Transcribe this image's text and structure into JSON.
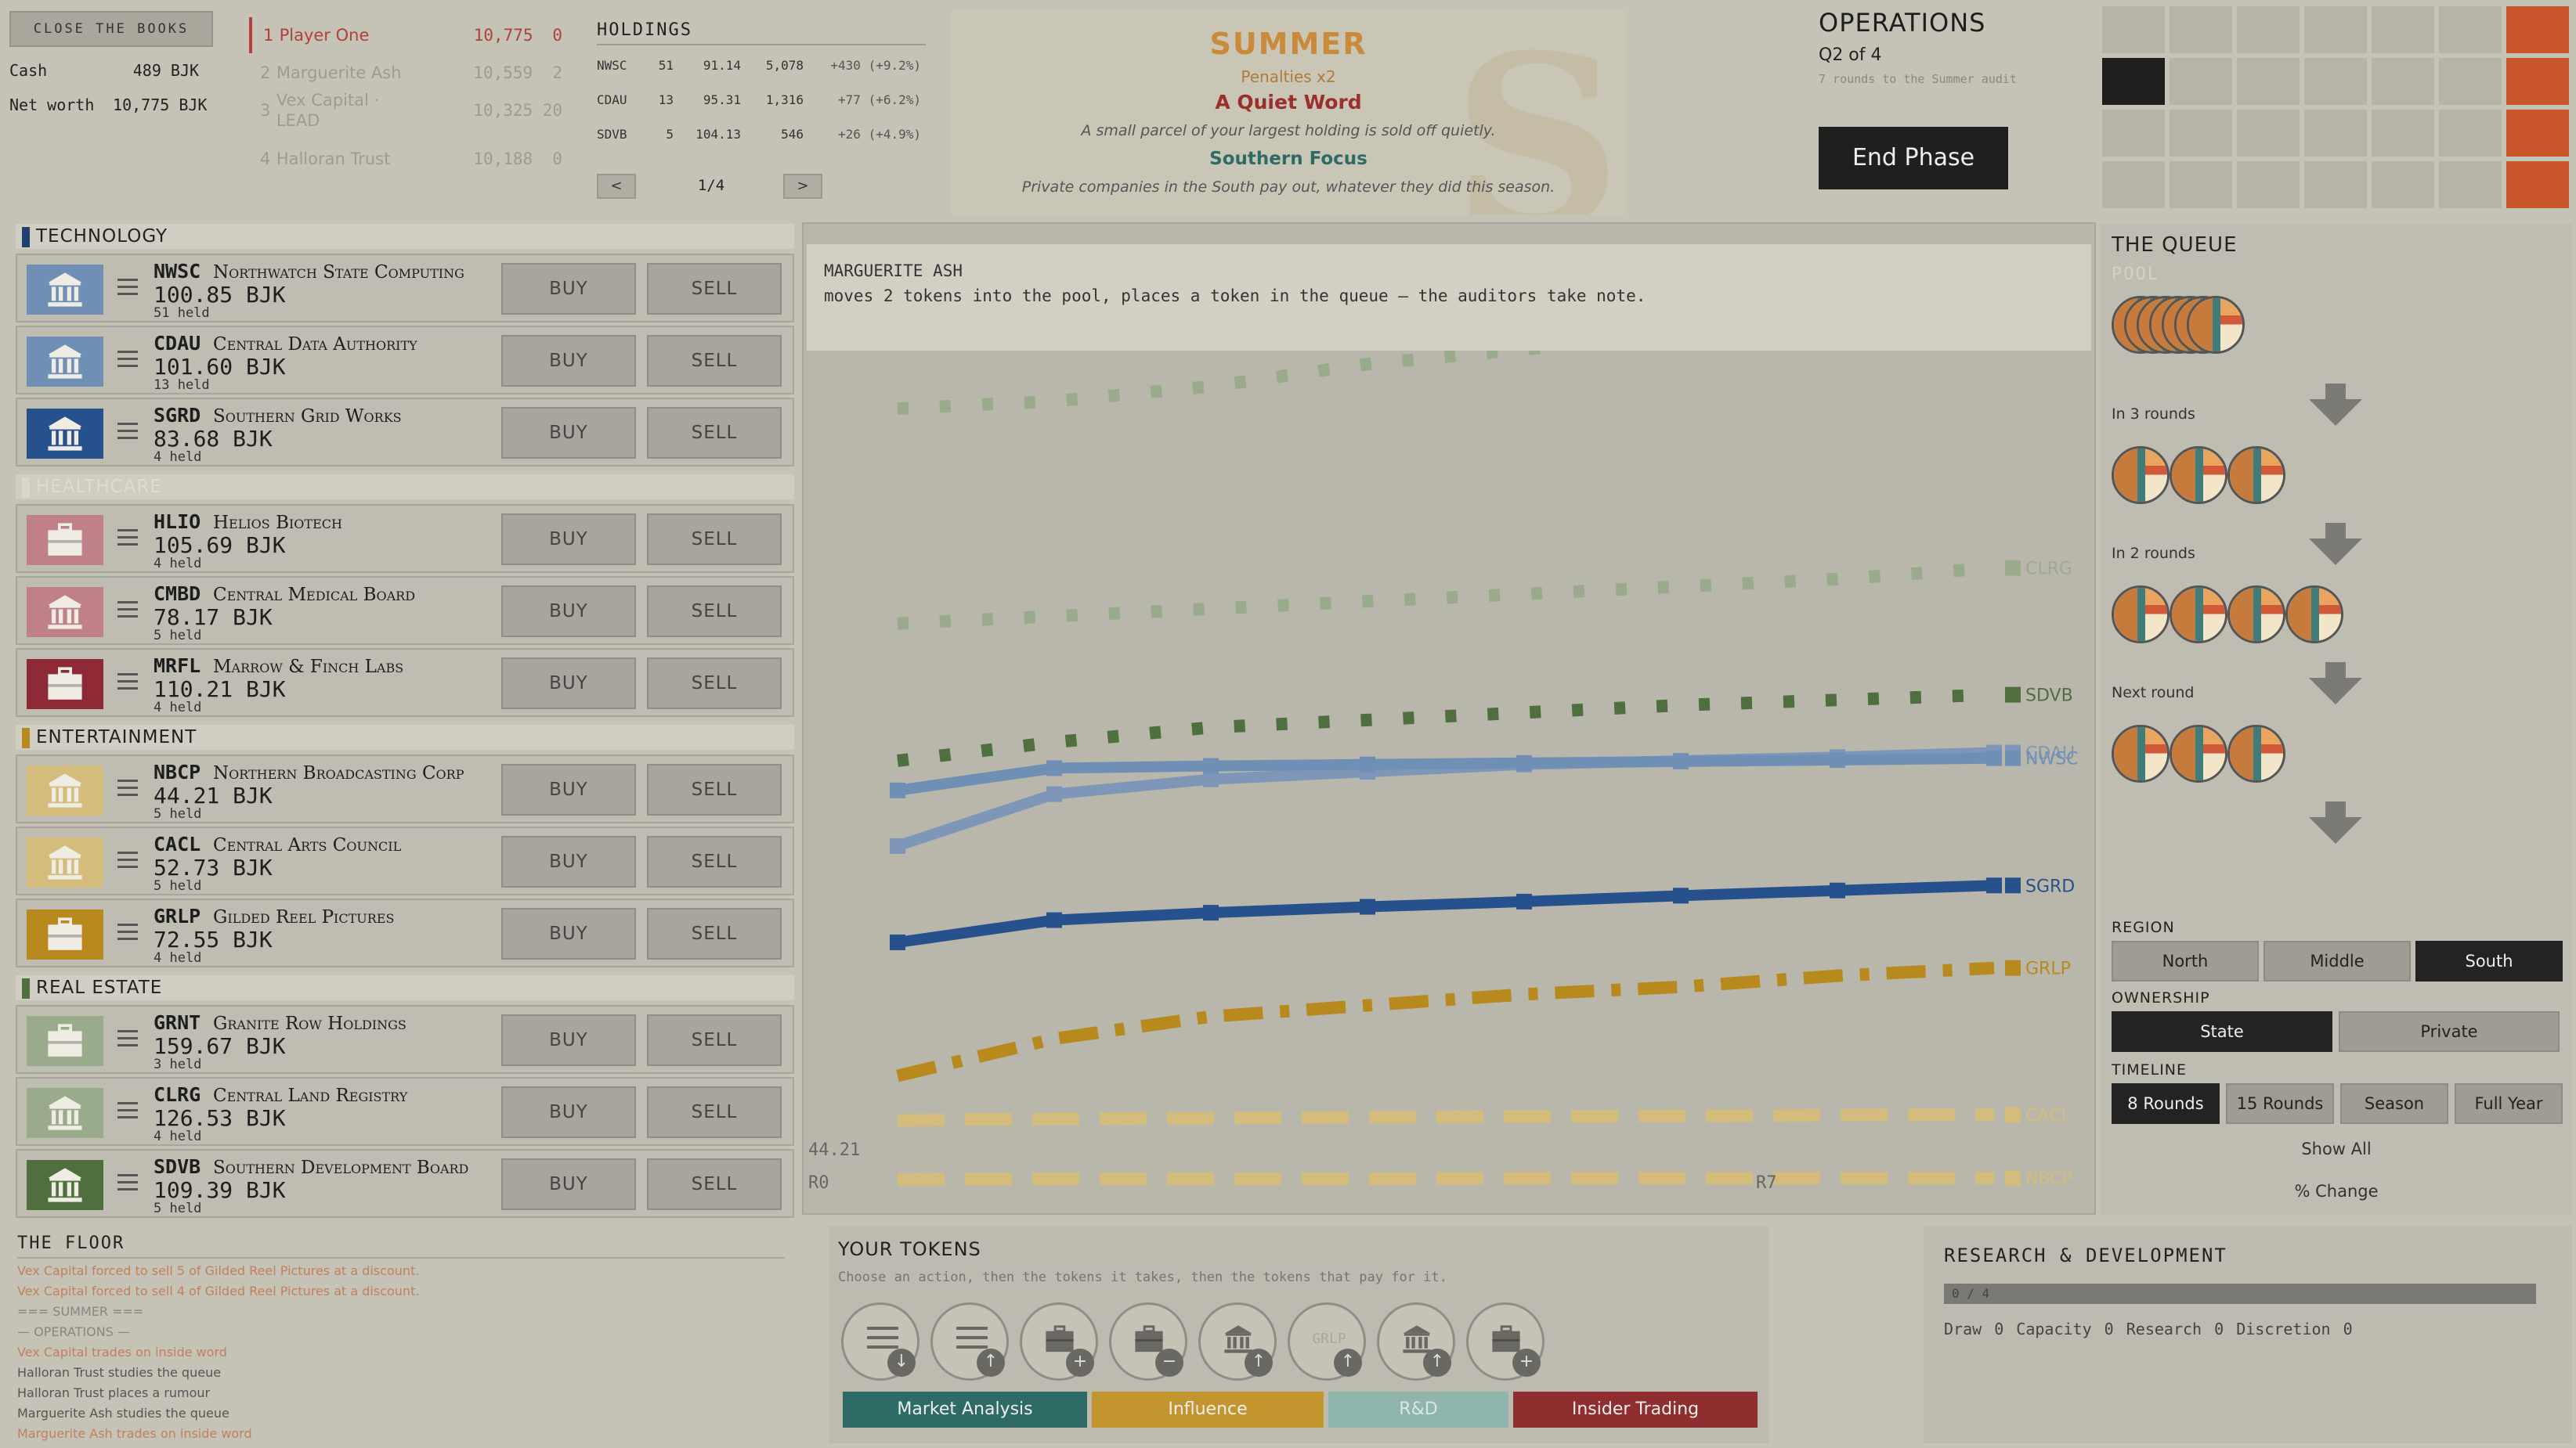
{
  "top_left": {
    "close_books_label": "CLOSE THE BOOKS",
    "cash_label": "Cash",
    "cash_value": "489 BJK",
    "networth_label": "Net worth",
    "networth_value": "10,775 BJK"
  },
  "rankings": [
    {
      "rank": "1",
      "name": "Player One",
      "networth": "10,775",
      "score": "0"
    },
    {
      "rank": "2",
      "name": "Marguerite Ash",
      "networth": "10,559",
      "score": "2"
    },
    {
      "rank": "3",
      "name": "Vex Capital · LEAD",
      "networth": "10,325",
      "score": "20"
    },
    {
      "rank": "4",
      "name": "Halloran Trust",
      "networth": "10,188",
      "score": "0"
    }
  ],
  "holdings": {
    "title": "HOLDINGS",
    "rows": [
      {
        "ticker": "NWSC",
        "shares": "51",
        "price": "91.14",
        "value": "5,078",
        "change": "+430 (+9.2%)"
      },
      {
        "ticker": "CDAU",
        "shares": "13",
        "price": "95.31",
        "value": "1,316",
        "change": "+77 (+6.2%)"
      },
      {
        "ticker": "SDVB",
        "shares": "5",
        "price": "104.13",
        "value": "546",
        "change": "+26 (+4.9%)"
      }
    ],
    "prev": "<",
    "next": ">",
    "page": "1/4"
  },
  "season": {
    "name": "SUMMER",
    "penalties": "Penalties x2",
    "event1_title": "A Quiet Word",
    "event1_desc": "A small parcel of your largest holding is sold off quietly.",
    "event2_title": "Southern Focus",
    "event2_desc": "Private companies in the South pay out, whatever they did this season.",
    "watermark": "S"
  },
  "operations": {
    "title": "OPERATIONS",
    "quarter": "Q2 of 4",
    "note": "7 rounds to the Summer audit",
    "end_phase": "End Phase"
  },
  "market": {
    "sectors": [
      {
        "name": "TECHNOLOGY",
        "color": "#1f3f6e",
        "faded": false,
        "stocks": [
          {
            "ticker": "NWSC",
            "name": "Northwatch State Computing",
            "price": "100.85 BJK",
            "held": "51 held",
            "icon": "institution-icon",
            "color": "#6f8fb5"
          },
          {
            "ticker": "CDAU",
            "name": "Central Data Authority",
            "price": "101.60 BJK",
            "held": "13 held",
            "icon": "institution-icon",
            "color": "#6f8fb5"
          },
          {
            "ticker": "SGRD",
            "name": "Southern Grid Works",
            "price": "83.68 BJK",
            "held": "4 held",
            "icon": "institution-icon",
            "color": "#27518c"
          }
        ]
      },
      {
        "name": "HEALTHCARE",
        "color": "#d9d6cb",
        "faded": true,
        "stocks": [
          {
            "ticker": "HLIO",
            "name": "Helios Biotech",
            "price": "105.69 BJK",
            "held": "4 held",
            "icon": "briefcase-icon",
            "color": "#c08088"
          },
          {
            "ticker": "CMBD",
            "name": "Central Medical Board",
            "price": "78.17 BJK",
            "held": "5 held",
            "icon": "institution-icon",
            "color": "#c08088"
          },
          {
            "ticker": "MRFL",
            "name": "Marrow & Finch Labs",
            "price": "110.21 BJK",
            "held": "4 held",
            "icon": "briefcase-icon",
            "color": "#8e2a35"
          }
        ]
      },
      {
        "name": "ENTERTAINMENT",
        "color": "#b88a1e",
        "faded": false,
        "stocks": [
          {
            "ticker": "NBCP",
            "name": "Northern Broadcasting Corp",
            "price": "44.21 BJK",
            "held": "5 held",
            "icon": "institution-icon",
            "color": "#d4bd7c"
          },
          {
            "ticker": "CACL",
            "name": "Central Arts Council",
            "price": "52.73 BJK",
            "held": "5 held",
            "icon": "institution-icon",
            "color": "#d4bd7c"
          },
          {
            "ticker": "GRLP",
            "name": "Gilded Reel Pictures",
            "price": "72.55 BJK",
            "held": "4 held",
            "icon": "briefcase-icon",
            "color": "#b88a1e"
          }
        ]
      },
      {
        "name": "REAL ESTATE",
        "color": "#4f6f3e",
        "faded": false,
        "stocks": [
          {
            "ticker": "GRNT",
            "name": "Granite Row Holdings",
            "price": "159.67 BJK",
            "held": "3 held",
            "icon": "briefcase-icon",
            "color": "#9aab8c"
          },
          {
            "ticker": "CLRG",
            "name": "Central Land Registry",
            "price": "126.53 BJK",
            "held": "4 held",
            "icon": "institution-icon",
            "color": "#9aab8c"
          },
          {
            "ticker": "SDVB",
            "name": "Southern Development Board",
            "price": "109.39 BJK",
            "held": "5 held",
            "icon": "institution-icon",
            "color": "#4f6f3e"
          }
        ]
      }
    ],
    "buy_label": "BUY",
    "sell_label": "SELL"
  },
  "event_log": {
    "actor": "MARGUERITE ASH",
    "text": "moves 2 tokens into the pool, places a token in the queue — the auditors take note."
  },
  "chart_data": {
    "type": "line",
    "x": [
      0,
      1,
      2,
      3,
      4,
      5,
      6,
      7
    ],
    "xlabel_left": "R0",
    "xlabel_right": "R7",
    "min_label": "44.21",
    "ylim": [
      40,
      165
    ],
    "series": [
      {
        "name": "",
        "color": "#9aab8c",
        "style": "dotted",
        "values": [
          148,
          149,
          151,
          154,
          156,
          158,
          160,
          162
        ]
      },
      {
        "name": "CLRG",
        "color": "#9aab8c",
        "style": "dotted",
        "values": [
          119,
          120,
          121,
          122,
          123,
          124,
          125,
          126.5
        ]
      },
      {
        "name": "SDVB",
        "color": "#4f6f3e",
        "style": "dotted",
        "values": [
          100.5,
          103,
          105,
          106,
          107,
          108,
          108.7,
          109.4
        ]
      },
      {
        "name": "CDAU",
        "color": "#7e97b8",
        "style": "solid",
        "values": [
          89,
          96,
          98,
          99,
          100,
          100.5,
          101,
          101.6
        ]
      },
      {
        "name": "NWSC",
        "color": "#6f8fb5",
        "style": "solid",
        "values": [
          96.5,
          99.5,
          99.8,
          100,
          100.2,
          100.4,
          100.6,
          100.85
        ]
      },
      {
        "name": "SGRD",
        "color": "#27518c",
        "style": "solid",
        "values": [
          76,
          79,
          80,
          80.8,
          81.5,
          82.3,
          83,
          83.68
        ]
      },
      {
        "name": "GRLP",
        "color": "#b88a1e",
        "style": "dashdot",
        "values": [
          58,
          63,
          66,
          67.5,
          69,
          70,
          71.5,
          72.55
        ]
      },
      {
        "name": "CACL",
        "color": "#d4bd7c",
        "style": "dashed",
        "values": [
          52,
          52.2,
          52.3,
          52.4,
          52.5,
          52.6,
          52.7,
          52.73
        ]
      },
      {
        "name": "NBCP",
        "color": "#d4bd7c",
        "style": "dashed",
        "values": [
          44,
          44.1,
          44.1,
          44.1,
          44.2,
          44.2,
          44.2,
          44.21
        ]
      }
    ]
  },
  "queue": {
    "title": "THE QUEUE",
    "pool_label": "POOL",
    "pool_count": 7,
    "stages": [
      {
        "label": "In 3 rounds",
        "count": 3
      },
      {
        "label": "In 2 rounds",
        "count": 4
      },
      {
        "label": "Next round",
        "count": 3
      }
    ]
  },
  "filters": {
    "region_label": "REGION",
    "region": [
      "North",
      "Middle",
      "South"
    ],
    "region_active": 2,
    "ownership_label": "OWNERSHIP",
    "ownership": [
      "State",
      "Private"
    ],
    "ownership_active": 0,
    "timeline_label": "TIMELINE",
    "timeline": [
      "8 Rounds",
      "15 Rounds",
      "Season",
      "Full Year"
    ],
    "timeline_active": 0,
    "show_all": "Show All",
    "pct_change": "% Change"
  },
  "floor": {
    "title": "THE FLOOR",
    "lines": [
      {
        "text": "Vex Capital forced to sell 5 of Gilded Reel Pictures at a discount.",
        "color": "#c4805c"
      },
      {
        "text": "Vex Capital forced to sell 4 of Gilded Reel Pictures at a discount.",
        "color": "#c4805c"
      },
      {
        "text": "=== SUMMER ===",
        "color": "#888680"
      },
      {
        "text": "— OPERATIONS —",
        "color": "#888680"
      },
      {
        "text": "Vex Capital trades on inside word",
        "color": "#c4805c"
      },
      {
        "text": "Halloran Trust studies the queue",
        "color": "#555"
      },
      {
        "text": "Halloran Trust places a rumour",
        "color": "#555"
      },
      {
        "text": "Marguerite Ash studies the queue",
        "color": "#555"
      },
      {
        "text": "Marguerite Ash trades on inside word",
        "color": "#c4805c"
      }
    ]
  },
  "tokens": {
    "title": "YOUR TOKENS",
    "hint": "Choose an action, then the tokens it takes, then the tokens that pay for it.",
    "actions": [
      {
        "name": "analysis-down-icon",
        "glyph": "menu",
        "badge": "↓"
      },
      {
        "name": "analysis-up-icon",
        "glyph": "menu",
        "badge": "↑"
      },
      {
        "name": "briefcase-plus-icon",
        "glyph": "briefcase",
        "badge": "+"
      },
      {
        "name": "briefcase-minus-icon",
        "glyph": "briefcase",
        "badge": "−"
      },
      {
        "name": "institution-up-icon",
        "glyph": "institution",
        "badge": "↑"
      },
      {
        "name": "grlp-up-icon",
        "glyph": "text",
        "text": "GRLP",
        "badge": "↑"
      },
      {
        "name": "institution-up-icon",
        "glyph": "institution",
        "badge": "↑"
      },
      {
        "name": "briefcase-plus-icon",
        "glyph": "briefcase",
        "badge": "+"
      }
    ],
    "categories": [
      {
        "label": "Market Analysis",
        "color": "#2f6b66"
      },
      {
        "label": "Influence",
        "color": "#c3952e"
      },
      {
        "label": "R&D",
        "color": "#8fb5ad"
      },
      {
        "label": "Insider Trading",
        "color": "#8e2e2e"
      }
    ]
  },
  "rd": {
    "title": "RESEARCH & DEVELOPMENT",
    "progress": "0 / 4",
    "stats": "Draw 0   Capacity 0   Research 0   Discretion 0"
  }
}
